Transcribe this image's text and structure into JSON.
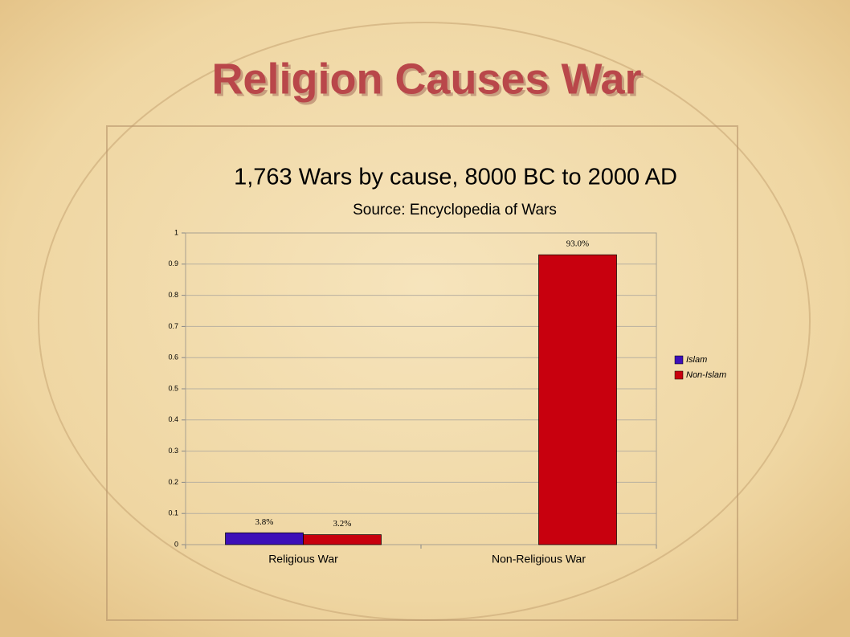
{
  "slide": {
    "title": "Religion Causes War"
  },
  "chart_data": {
    "type": "bar",
    "title": "1,763 Wars by cause, 8000 BC to 2000 AD",
    "subtitle": "Source: Encyclopedia of Wars",
    "categories": [
      "Religious War",
      "Non-Religious War"
    ],
    "series": [
      {
        "name": "Islam",
        "color": "#3d0fb8",
        "values": [
          0.038,
          null
        ],
        "value_labels": [
          "3.8%",
          null
        ]
      },
      {
        "name": "Non-Islam",
        "color": "#c8000e",
        "values": [
          0.032,
          0.93
        ],
        "value_labels": [
          "3.2%",
          "93.0%"
        ]
      }
    ],
    "ylim": [
      0,
      1
    ],
    "yticks": [
      0,
      0.1,
      0.2,
      0.3,
      0.4,
      0.5,
      0.6,
      0.7,
      0.8,
      0.9,
      1
    ],
    "grid": true,
    "legend": "right"
  }
}
